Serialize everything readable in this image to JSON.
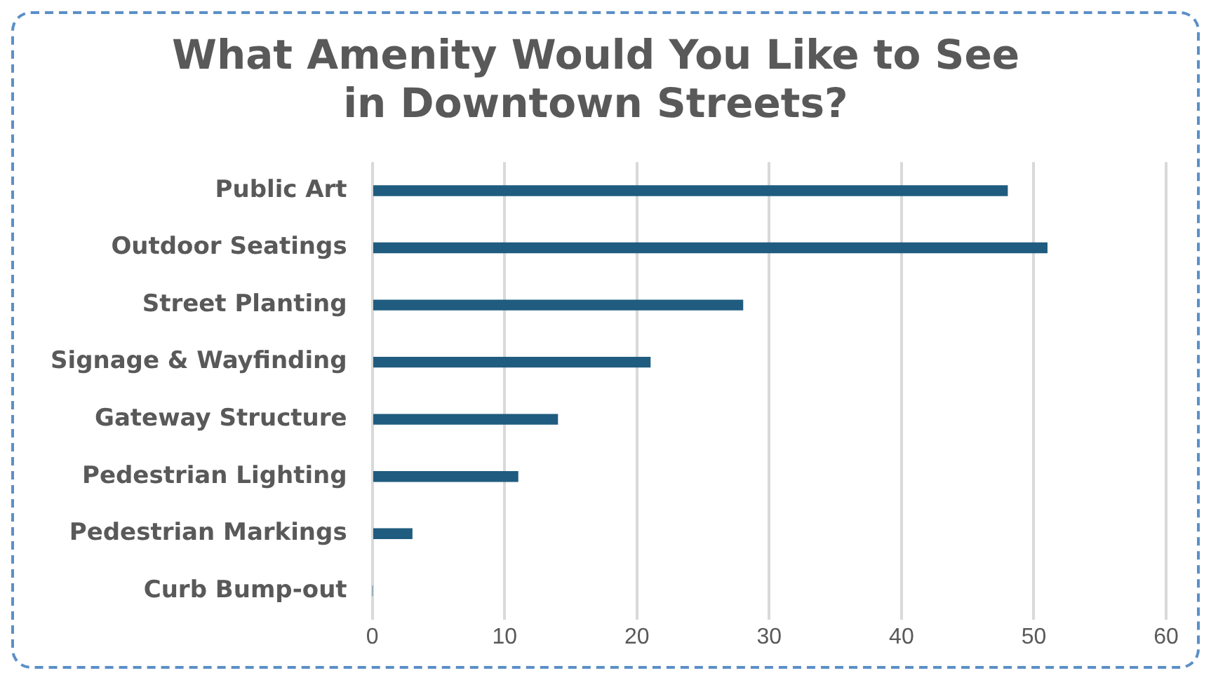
{
  "chart_data": {
    "type": "bar",
    "orientation": "horizontal",
    "title": "What Amenity Would You Like to See in Downtown Streets?",
    "categories": [
      "Public Art",
      "Outdoor Seatings",
      "Street Planting",
      "Signage & Wayfinding",
      "Gateway Structure",
      "Pedestrian Lighting",
      "Pedestrian Markings",
      "Curb Bump-out"
    ],
    "values": [
      48,
      51,
      28,
      21,
      14,
      11,
      3,
      0
    ],
    "color": "#1f5c7f",
    "xlim": [
      0,
      60
    ],
    "xticks": [
      0,
      10,
      20,
      30,
      40,
      50,
      60
    ],
    "grid": "x",
    "legend": false
  }
}
